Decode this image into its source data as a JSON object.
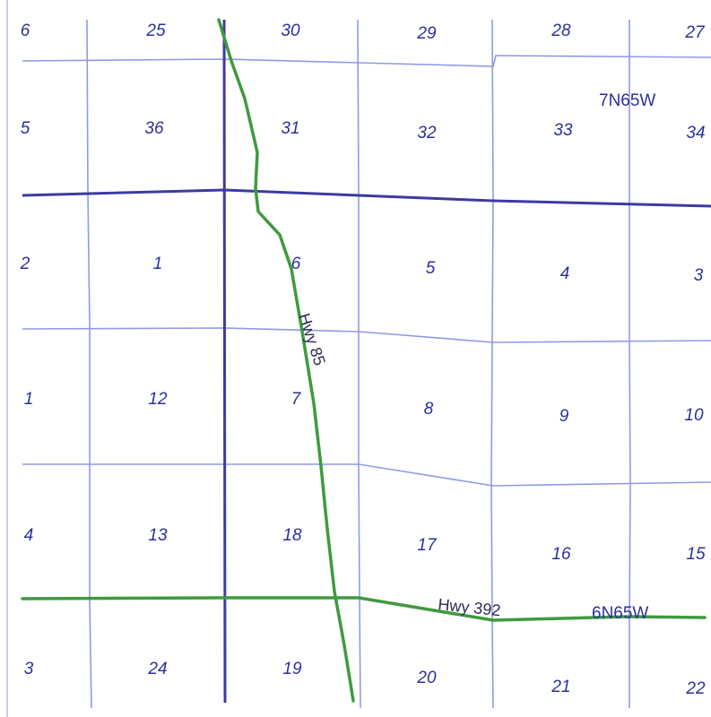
{
  "map": {
    "sections": [
      {
        "name": "section-6-partial-top",
        "label": "6"
      },
      {
        "name": "section-25",
        "label": "25"
      },
      {
        "name": "section-30",
        "label": "30"
      },
      {
        "name": "section-29",
        "label": "29"
      },
      {
        "name": "section-28",
        "label": "28"
      },
      {
        "name": "section-27",
        "label": "27"
      },
      {
        "name": "section-5-partial",
        "label": "5"
      },
      {
        "name": "section-36",
        "label": "36"
      },
      {
        "name": "section-31",
        "label": "31"
      },
      {
        "name": "section-32",
        "label": "32"
      },
      {
        "name": "section-33",
        "label": "33"
      },
      {
        "name": "section-34",
        "label": "34"
      },
      {
        "name": "section-2-partial",
        "label": "2"
      },
      {
        "name": "section-1",
        "label": "1"
      },
      {
        "name": "section-6",
        "label": "6"
      },
      {
        "name": "section-5",
        "label": "5"
      },
      {
        "name": "section-4",
        "label": "4"
      },
      {
        "name": "section-3",
        "label": "3"
      },
      {
        "name": "section-11-partial",
        "label": "1"
      },
      {
        "name": "section-12",
        "label": "12"
      },
      {
        "name": "section-7",
        "label": "7"
      },
      {
        "name": "section-8",
        "label": "8"
      },
      {
        "name": "section-9",
        "label": "9"
      },
      {
        "name": "section-10",
        "label": "10"
      },
      {
        "name": "section-14-partial",
        "label": "4"
      },
      {
        "name": "section-13",
        "label": "13"
      },
      {
        "name": "section-18",
        "label": "18"
      },
      {
        "name": "section-17",
        "label": "17"
      },
      {
        "name": "section-16",
        "label": "16"
      },
      {
        "name": "section-15",
        "label": "15"
      },
      {
        "name": "section-23-partial",
        "label": "3"
      },
      {
        "name": "section-24",
        "label": "24"
      },
      {
        "name": "section-19",
        "label": "19"
      },
      {
        "name": "section-20",
        "label": "20"
      },
      {
        "name": "section-21",
        "label": "21"
      },
      {
        "name": "section-22",
        "label": "22"
      }
    ],
    "townships": {
      "north": "7N65W",
      "south": "6N65W"
    },
    "highways": {
      "hwy_85": "Hwy 85",
      "hwy_392": "Hwy 392"
    },
    "colors": {
      "section_label": "#2d2f9a",
      "section_line": "#8f9ae6",
      "township_line": "#3c3ba0",
      "highway": "#3f9a3f"
    }
  }
}
